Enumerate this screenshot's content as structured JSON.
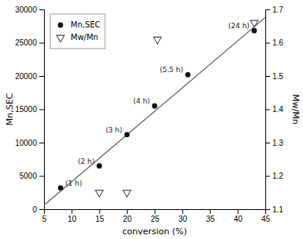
{
  "chart_data": {
    "type": "scatter",
    "xlabel": "conversion (%)",
    "ylabel": "Mn,SEC",
    "y2label": "Mw/Mn",
    "xlim": [
      5,
      45
    ],
    "ylim": [
      0,
      30000
    ],
    "y2lim": [
      1.1,
      1.7
    ],
    "xticks": [
      5,
      10,
      15,
      20,
      25,
      30,
      35,
      40,
      45
    ],
    "yticks": [
      0,
      5000,
      10000,
      15000,
      20000,
      25000,
      30000
    ],
    "y2ticks": [
      1.1,
      1.2,
      1.3,
      1.4,
      1.5,
      1.6,
      1.7
    ],
    "grid": false,
    "legend": "upper left",
    "background_color": "#ffffff",
    "series": [
      {
        "type": "line",
        "color": "#666666",
        "x": [
          5,
          45
        ],
        "values": [
          600,
          28800
        ]
      },
      {
        "name": "Mn,SEC",
        "type": "scatter",
        "marker": "circle",
        "color": "#111111",
        "x": [
          8,
          15,
          20,
          25,
          31,
          43
        ],
        "values": [
          3200,
          6500,
          11200,
          15500,
          20200,
          26800
        ],
        "labels": [
          "(1 h)",
          "(2 h)",
          "(3 h)",
          "(4 h)",
          "(5.5 h)",
          "(24 h)"
        ]
      },
      {
        "name": "Mw/Mn",
        "type": "scatter",
        "marker": "triangle_down",
        "color": "#444444",
        "axis": "y2",
        "x": [
          15,
          20,
          25.5,
          43
        ],
        "values": [
          1.15,
          1.15,
          1.61,
          1.66
        ]
      }
    ]
  }
}
